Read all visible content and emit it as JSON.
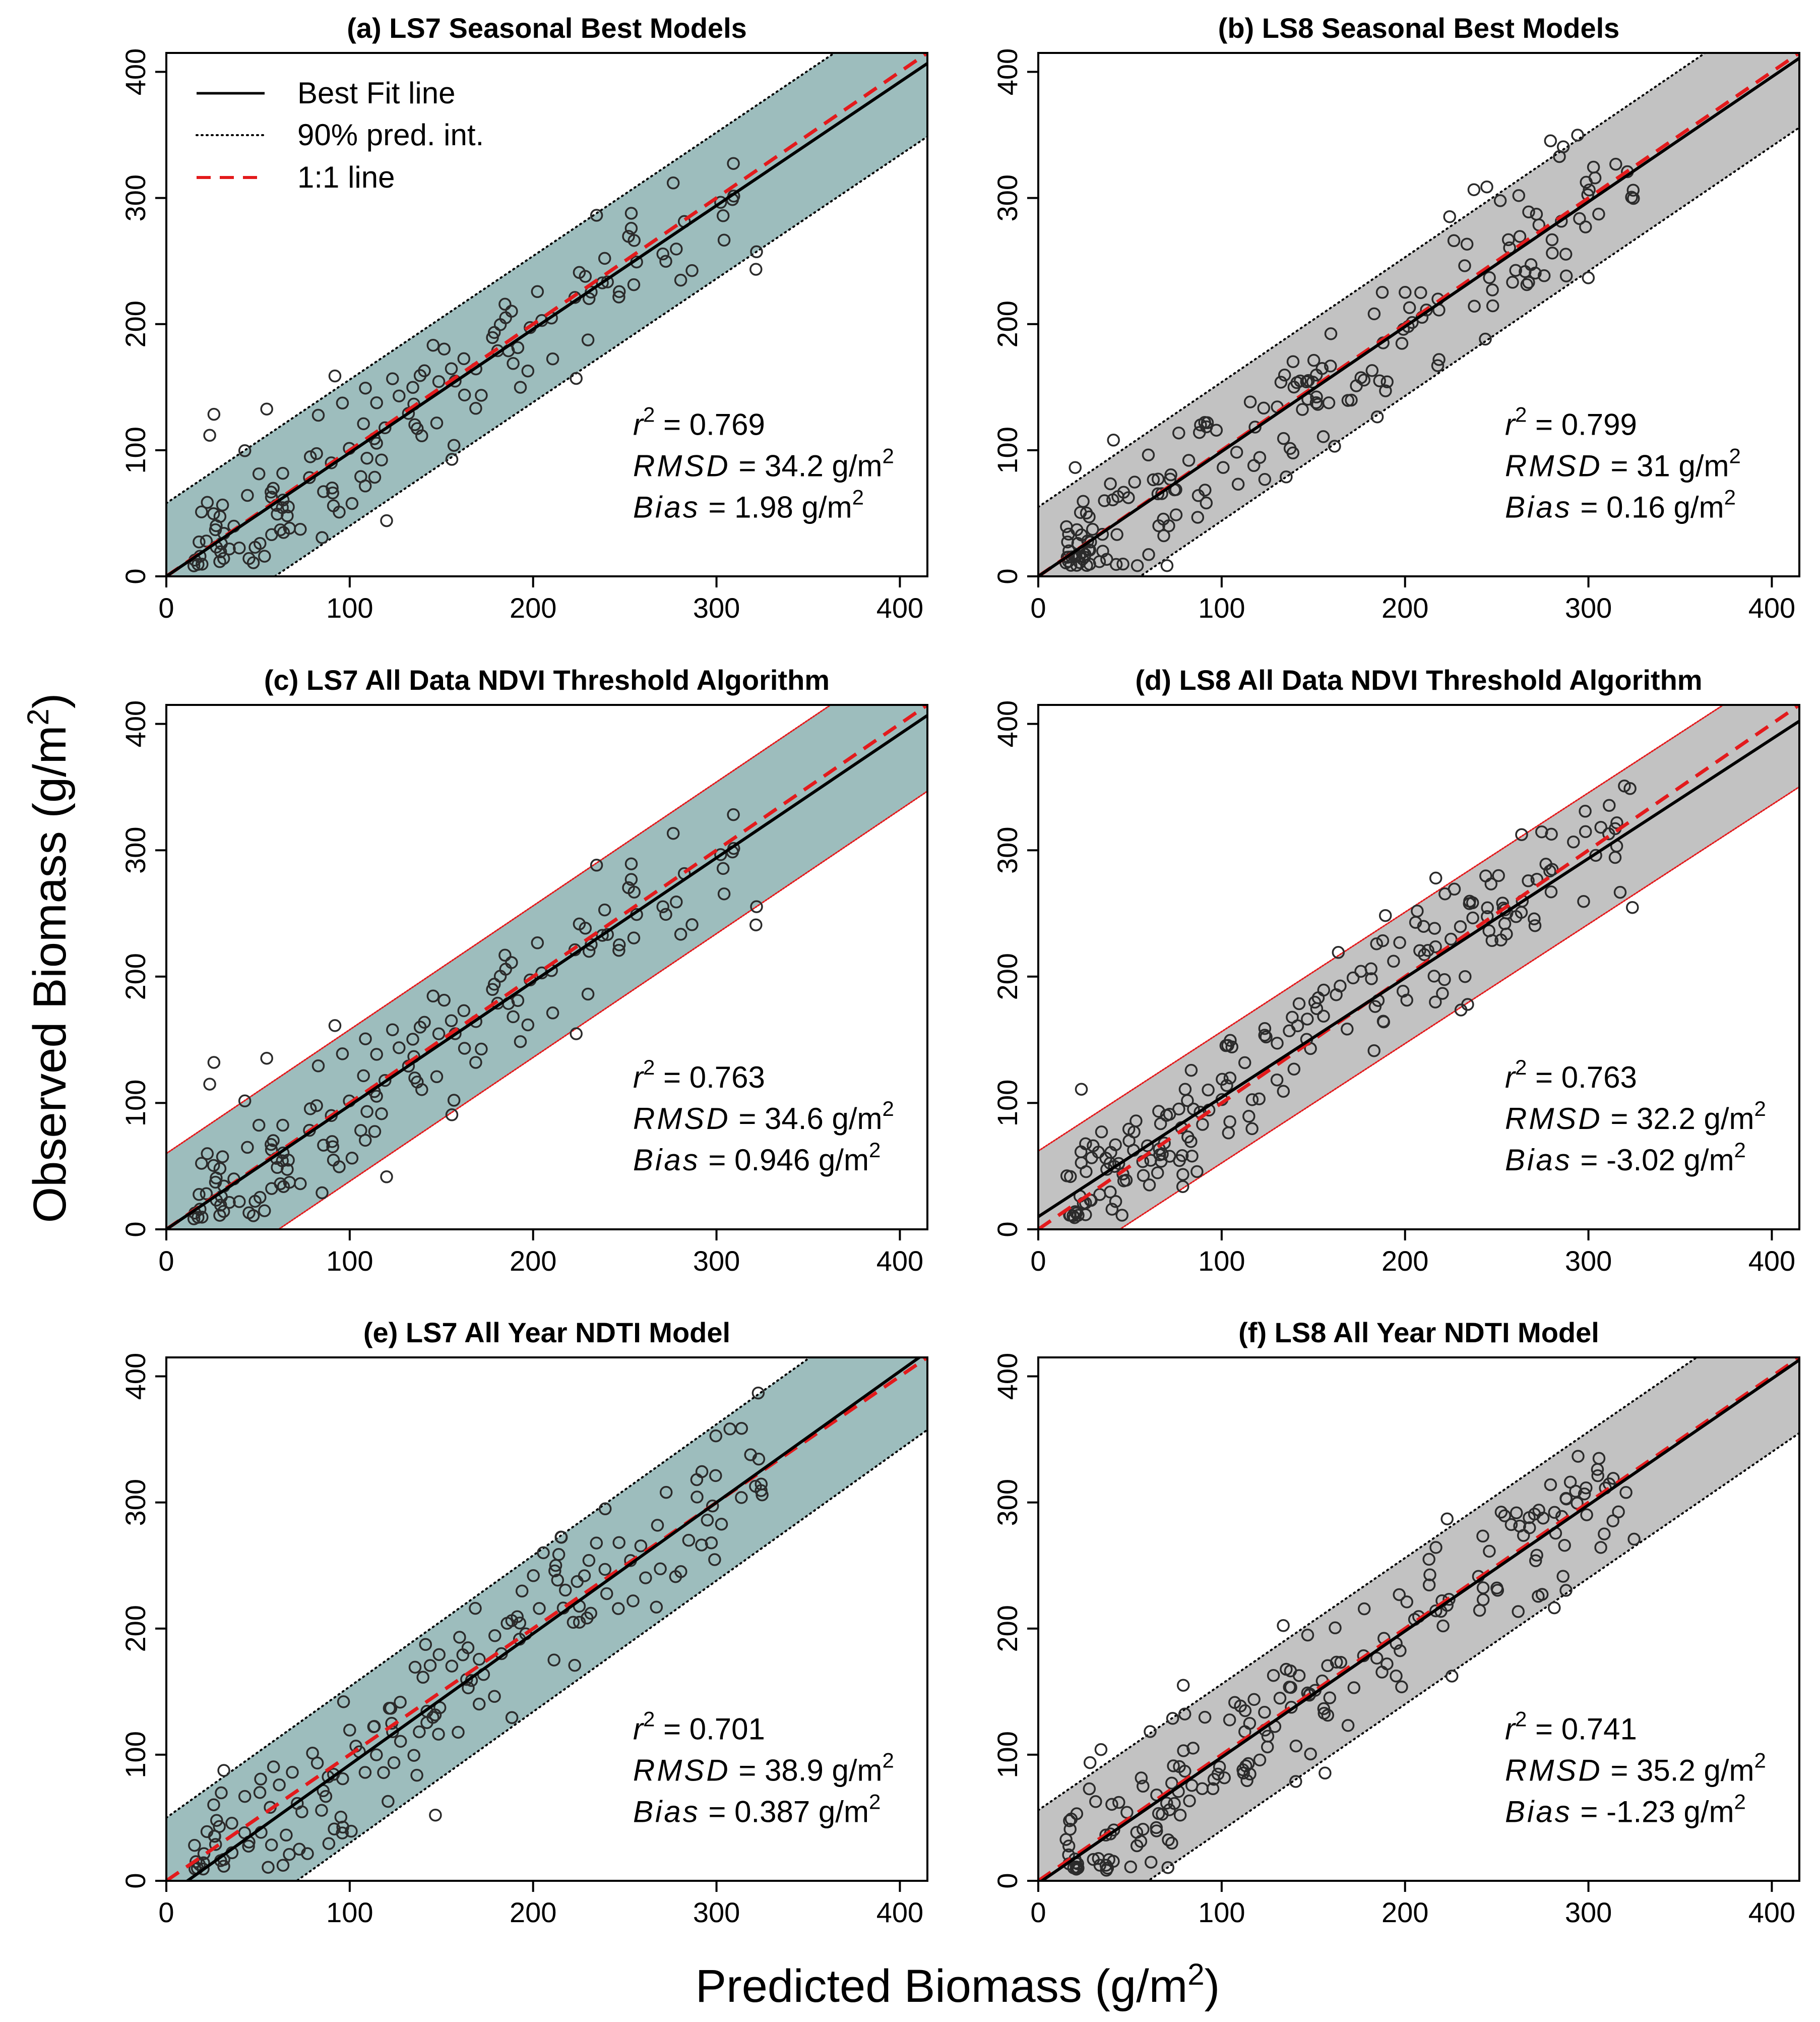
{
  "figure": {
    "ylabel": "Observed Biomass (g/m",
    "xlabel": "Predicted Biomass (g/m",
    "unit_superscript": "2",
    "closing_paren": ")"
  },
  "legend": {
    "best_fit": "Best Fit line",
    "pred_int": "90% pred. int.",
    "one_to_one": "1:1 line"
  },
  "colors": {
    "ls7_band": "#9dbdbd",
    "ls8_band": "#c2c2c2",
    "best_fit": "#000000",
    "one_to_one": "#e31a1c",
    "interval_dotted": "#000000",
    "interval_red": "#e31a1c"
  },
  "chart_data": [
    {
      "type": "scatter",
      "title": "(a) LS7 Seasonal Best Models",
      "sensor": "LS7",
      "xlim": [
        0,
        415
      ],
      "ylim": [
        0,
        415
      ],
      "xticks": [
        0,
        100,
        200,
        300,
        400
      ],
      "yticks": [
        0,
        100,
        200,
        300,
        400
      ],
      "fit": {
        "intercept": 0,
        "slope": 0.98
      },
      "interval_halfwidth": 58,
      "interval_style": "dotted",
      "stats": {
        "r2": "0.769",
        "rmsd": "34.2",
        "bias": "1.98"
      },
      "points_seed": 11,
      "n_points": 150
    },
    {
      "type": "scatter",
      "title": "(b) LS8 Seasonal Best Models",
      "sensor": "LS8",
      "xlim": [
        0,
        415
      ],
      "ylim": [
        0,
        415
      ],
      "xticks": [
        0,
        100,
        200,
        300,
        400
      ],
      "yticks": [
        0,
        100,
        200,
        300,
        400
      ],
      "fit": {
        "intercept": 0,
        "slope": 0.99
      },
      "interval_halfwidth": 55,
      "interval_style": "dotted",
      "stats": {
        "r2": "0.799",
        "rmsd": "31",
        "bias": "0.16"
      },
      "points_seed": 23,
      "n_points": 190
    },
    {
      "type": "scatter",
      "title": "(c) LS7 All Data NDVI Threshold Algorithm",
      "sensor": "LS7",
      "xlim": [
        0,
        415
      ],
      "ylim": [
        0,
        415
      ],
      "xticks": [
        0,
        100,
        200,
        300,
        400
      ],
      "yticks": [
        0,
        100,
        200,
        300,
        400
      ],
      "fit": {
        "intercept": 0,
        "slope": 0.98
      },
      "interval_halfwidth": 60,
      "interval_style": "red",
      "stats": {
        "r2": "0.763",
        "rmsd": "34.6",
        "bias": "0.946"
      },
      "points_seed": 11,
      "n_points": 150
    },
    {
      "type": "scatter",
      "title": "(d) LS8 All Data NDVI Threshold Algorithm",
      "sensor": "LS8",
      "xlim": [
        0,
        415
      ],
      "ylim": [
        0,
        415
      ],
      "xticks": [
        0,
        100,
        200,
        300,
        400
      ],
      "yticks": [
        0,
        100,
        200,
        300,
        400
      ],
      "fit": {
        "intercept": 10,
        "slope": 0.945
      },
      "interval_halfwidth": 52,
      "interval_style": "red",
      "stats": {
        "r2": "0.763",
        "rmsd": "32.2",
        "bias": "-3.02"
      },
      "points_seed": 37,
      "n_points": 200
    },
    {
      "type": "scatter",
      "title": "(e) LS7 All Year NDTI Model",
      "sensor": "LS7",
      "xlim": [
        0,
        415
      ],
      "ylim": [
        0,
        415
      ],
      "xticks": [
        0,
        100,
        200,
        300,
        400
      ],
      "yticks": [
        0,
        100,
        200,
        300,
        400
      ],
      "fit": {
        "intercept": -12,
        "slope": 1.04
      },
      "interval_halfwidth": 62,
      "interval_style": "dotted",
      "stats": {
        "r2": "0.701",
        "rmsd": "38.9",
        "bias": "0.387"
      },
      "points_seed": 51,
      "n_points": 170
    },
    {
      "type": "scatter",
      "title": "(f) LS8 All Year NDTI Model",
      "sensor": "LS8",
      "xlim": [
        0,
        415
      ],
      "ylim": [
        0,
        415
      ],
      "xticks": [
        0,
        100,
        200,
        300,
        400
      ],
      "yticks": [
        0,
        100,
        200,
        300,
        400
      ],
      "fit": {
        "intercept": -2,
        "slope": 1.0
      },
      "interval_halfwidth": 58,
      "interval_style": "dotted",
      "stats": {
        "r2": "0.741",
        "rmsd": "35.2",
        "bias": "-1.23"
      },
      "points_seed": 64,
      "n_points": 200
    }
  ]
}
